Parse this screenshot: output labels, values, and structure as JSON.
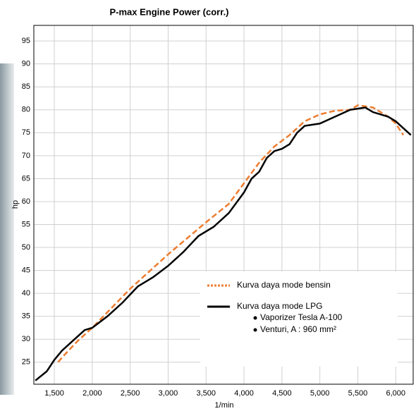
{
  "chart_data": {
    "type": "line",
    "title": "P-max Engine Power (corr.)",
    "xlabel": "1/min",
    "ylabel": "hp",
    "xlim": [
      1230,
      6230
    ],
    "ylim": [
      20.2,
      98.4
    ],
    "xticks": [
      {
        "value": 1500,
        "label": "1,500"
      },
      {
        "value": 2000,
        "label": "2,000"
      },
      {
        "value": 2500,
        "label": "2,500"
      },
      {
        "value": 3000,
        "label": "3,000"
      },
      {
        "value": 3500,
        "label": "3,500"
      },
      {
        "value": 4000,
        "label": "4,000"
      },
      {
        "value": 4500,
        "label": "4,500"
      },
      {
        "value": 5000,
        "label": "5,000"
      },
      {
        "value": 5500,
        "label": "5,500"
      },
      {
        "value": 6000,
        "label": "6,000"
      }
    ],
    "yticks": [
      25,
      30,
      35,
      40,
      45,
      50,
      55,
      60,
      65,
      70,
      75,
      80,
      85,
      90,
      95
    ],
    "grid": true,
    "legend": "lower right",
    "series": [
      {
        "name": "Kurva daya mode bensin",
        "color": "#ed7d31",
        "dashed": true,
        "x": [
          1550,
          1600,
          1800,
          2000,
          2500,
          3000,
          3500,
          3800,
          4000,
          4200,
          4400,
          4600,
          4800,
          5000,
          5200,
          5400,
          5500,
          5700,
          5900,
          6000,
          6100
        ],
        "values": [
          25,
          26,
          29.5,
          32.5,
          41,
          48.5,
          55.5,
          59.5,
          64,
          68.5,
          72,
          74.5,
          77.5,
          79,
          79.8,
          80,
          81,
          80.5,
          78.5,
          77,
          74.5
        ]
      },
      {
        "name": "Kurva daya mode LPG",
        "color": "#000000",
        "dashed": false,
        "x": [
          1250,
          1400,
          1500,
          1600,
          1800,
          1900,
          2000,
          2200,
          2400,
          2600,
          2800,
          3000,
          3200,
          3400,
          3600,
          3800,
          4000,
          4050,
          4100,
          4200,
          4300,
          4400,
          4500,
          4600,
          4700,
          4800,
          5000,
          5200,
          5400,
          5600,
          5700,
          5900,
          6000,
          6100,
          6200
        ],
        "values": [
          21,
          23,
          25.5,
          27.5,
          30.5,
          32,
          32.5,
          35,
          38,
          41.5,
          43.5,
          46,
          49,
          52.5,
          54.5,
          57.5,
          62,
          63.5,
          65,
          66.5,
          69.5,
          71,
          71.5,
          72.5,
          75,
          76.5,
          77,
          78.5,
          80,
          80.5,
          79.5,
          78.5,
          77.5,
          76,
          74.5
        ]
      }
    ],
    "annotations": [
      "Vaporizer Tesla A-100",
      "Venturi, A : 960 mm²"
    ]
  }
}
